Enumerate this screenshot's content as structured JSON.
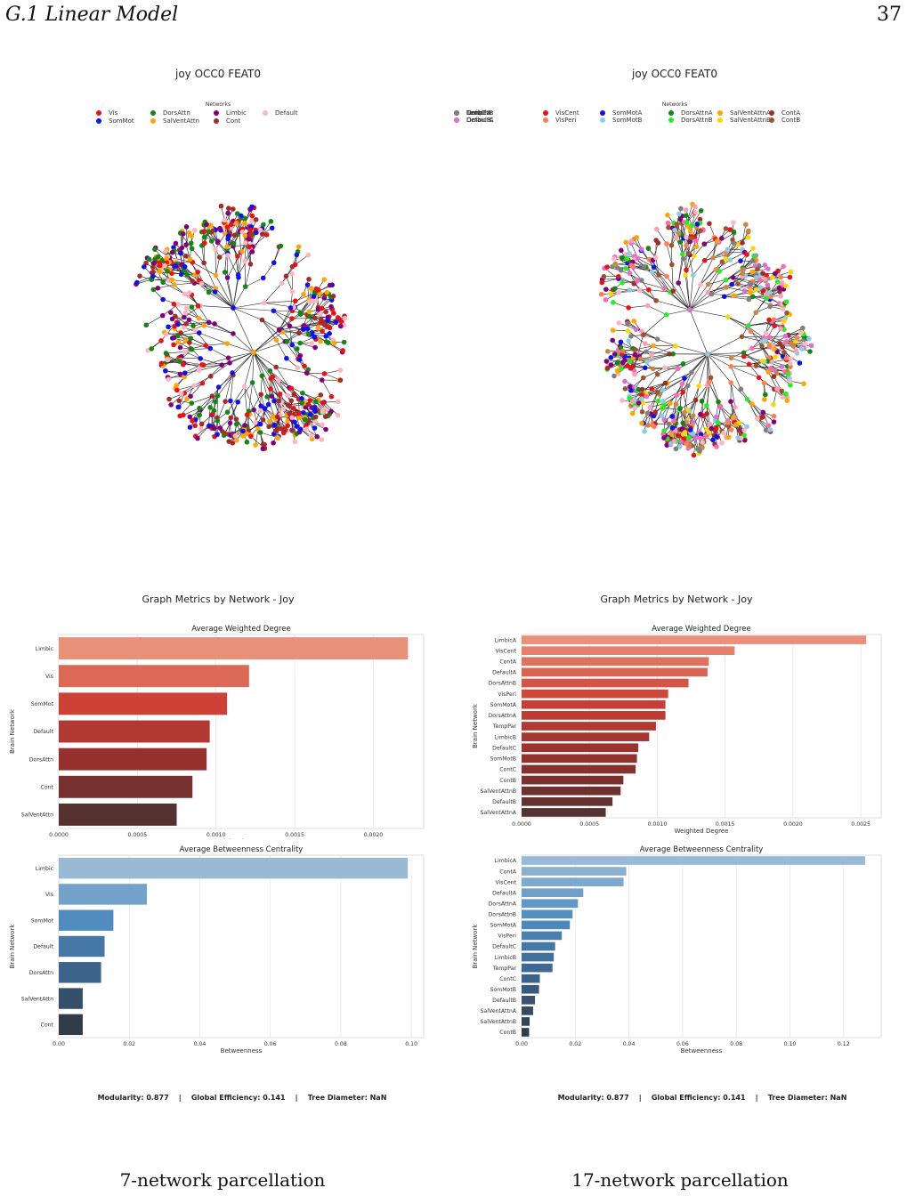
{
  "page": {
    "section": "G.1  Linear Model",
    "page_number": "37"
  },
  "panels": [
    {
      "graph_title": "joy OCC0 FEAT0",
      "legend_title": "Networks",
      "legend": [
        {
          "label": "Vis",
          "color": "#ee1111"
        },
        {
          "label": "SomMot",
          "color": "#1111ee"
        },
        {
          "label": "DorsAttn",
          "color": "#118811"
        },
        {
          "label": "SalVentAttn",
          "color": "#ffa500"
        },
        {
          "label": "Limbic",
          "color": "#800080"
        },
        {
          "label": "Cont",
          "color": "#a52a2a"
        },
        {
          "label": "Default",
          "color": "#ffb6c1"
        }
      ],
      "fig_title": "Graph Metrics by Network - Joy",
      "metrics_text": "Modularity: 0.877    |    Global Efficiency: 0.141    |    Tree Diameter: NaN",
      "caption": "7-network parcellation"
    },
    {
      "graph_title": "joy OCC0 FEAT0",
      "legend_title": "Networks",
      "legend": [
        {
          "label": "VisCent",
          "color": "#ee1111"
        },
        {
          "label": "VisPeri",
          "color": "#ff7f50"
        },
        {
          "label": "SomMotA",
          "color": "#1111ee"
        },
        {
          "label": "SomMotB",
          "color": "#87ceeb"
        },
        {
          "label": "DorsAttnA",
          "color": "#118811"
        },
        {
          "label": "DorsAttnB",
          "color": "#22ee22"
        },
        {
          "label": "SalVentAttnA",
          "color": "#ffa500"
        },
        {
          "label": "SalVentAttnB",
          "color": "#ffd700"
        },
        {
          "label": "ContA",
          "color": "#a52a2a"
        },
        {
          "label": "ContB",
          "color": "#a0522d"
        },
        {
          "label": "ContC",
          "color": "#cd853f"
        },
        {
          "label": "DefaultA",
          "color": "#ffb6c1"
        },
        {
          "label": "DefaultB",
          "color": "#ff9eb5"
        },
        {
          "label": "DefaultC",
          "color": "#ff69b4"
        },
        {
          "label": "LimbicA",
          "color": "#800080"
        },
        {
          "label": "LimbicB",
          "color": "#da70d6"
        },
        {
          "label": "TempPar",
          "color": "#808080"
        }
      ],
      "fig_title": "Graph Metrics by Network - Joy",
      "metrics_text": "Modularity: 0.877    |    Global Efficiency: 0.141    |    Tree Diameter: NaN",
      "caption": "17-network parcellation"
    }
  ],
  "chart_data": [
    {
      "type": "bar",
      "orientation": "horizontal",
      "title": "Average Weighted Degree",
      "xlabel": "Weighted Degree",
      "ylabel": "Brain Network",
      "categories": [
        "Limbic",
        "Vis",
        "SomMot",
        "Default",
        "DorsAttn",
        "Cont",
        "SalVentAttn"
      ],
      "values": [
        0.00222,
        0.00121,
        0.00107,
        0.00096,
        0.00094,
        0.00085,
        0.00075
      ],
      "xlim": [
        0,
        0.00232
      ],
      "ticks": [
        0,
        0.0005,
        0.001,
        0.0015,
        0.002
      ],
      "tick_labels": [
        "0.0000",
        "0.0005",
        "0.0010",
        "0.0015",
        "0.0020"
      ],
      "palette": "reds",
      "grid": true
    },
    {
      "type": "bar",
      "orientation": "horizontal",
      "title": "Average Betweenness Centrality",
      "xlabel": "Betweenness",
      "ylabel": "Brain Network",
      "categories": [
        "Limbic",
        "Vis",
        "SomMot",
        "Default",
        "DorsAttn",
        "SalVentAttn",
        "Cont"
      ],
      "values": [
        0.099,
        0.025,
        0.0155,
        0.013,
        0.012,
        0.0068,
        0.0068
      ],
      "xlim": [
        0,
        0.1035
      ],
      "ticks": [
        0,
        0.02,
        0.04,
        0.06,
        0.08,
        0.1
      ],
      "tick_labels": [
        "0.00",
        "0.02",
        "0.04",
        "0.06",
        "0.08",
        "0.10"
      ],
      "palette": "blues",
      "grid": true
    },
    {
      "type": "bar",
      "orientation": "horizontal",
      "title": "Average Weighted Degree",
      "xlabel": "Weighted Degree",
      "ylabel": "Brain Network",
      "categories": [
        "LimbicA",
        "VisCent",
        "ContA",
        "DefaultA",
        "DorsAttnB",
        "VisPeri",
        "SomMotA",
        "DorsAttnA",
        "TempPar",
        "LimbicB",
        "DefaultC",
        "SomMotB",
        "ContC",
        "ContB",
        "SalVentAttnB",
        "DefaultB",
        "SalVentAttnA"
      ],
      "values": [
        0.00254,
        0.00157,
        0.00138,
        0.00137,
        0.00123,
        0.00108,
        0.00106,
        0.00106,
        0.00099,
        0.00094,
        0.00086,
        0.00085,
        0.00084,
        0.00075,
        0.00073,
        0.00067,
        0.00062
      ],
      "xlim": [
        0,
        0.00265
      ],
      "ticks": [
        0,
        0.0005,
        0.001,
        0.0015,
        0.002,
        0.0025
      ],
      "tick_labels": [
        "0.0000",
        "0.0005",
        "0.0010",
        "0.0015",
        "0.0020",
        "0.0025"
      ],
      "palette": "reds",
      "grid": true
    },
    {
      "type": "bar",
      "orientation": "horizontal",
      "title": "Average Betweenness Centrality",
      "xlabel": "Betweenness",
      "ylabel": "Brain Network",
      "categories": [
        "LimbicA",
        "ContA",
        "VisCent",
        "DefaultA",
        "DorsAttnA",
        "DorsAttnB",
        "SomMotA",
        "VisPeri",
        "DefaultC",
        "LimbicB",
        "TempPar",
        "ContC",
        "SomMotB",
        "DefaultB",
        "SalVentAttnA",
        "SalVentAttnB",
        "ContB"
      ],
      "values": [
        0.128,
        0.039,
        0.038,
        0.023,
        0.021,
        0.019,
        0.018,
        0.015,
        0.0125,
        0.012,
        0.0115,
        0.0068,
        0.0065,
        0.005,
        0.0043,
        0.003,
        0.0028
      ],
      "xlim": [
        0,
        0.134
      ],
      "ticks": [
        0,
        0.02,
        0.04,
        0.06,
        0.08,
        0.1,
        0.12
      ],
      "tick_labels": [
        "0.00",
        "0.02",
        "0.04",
        "0.06",
        "0.08",
        "0.10",
        "0.12"
      ],
      "palette": "blues",
      "grid": true
    }
  ]
}
